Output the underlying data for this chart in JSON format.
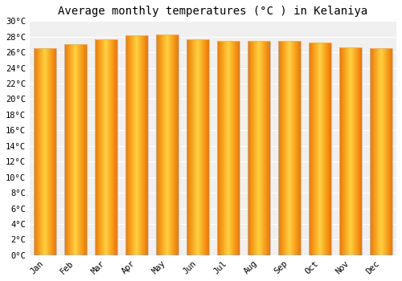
{
  "title": "Average monthly temperatures (°C ) in Kelaniya",
  "months": [
    "Jan",
    "Feb",
    "Mar",
    "Apr",
    "May",
    "Jun",
    "Jul",
    "Aug",
    "Sep",
    "Oct",
    "Nov",
    "Dec"
  ],
  "values": [
    26.5,
    27.0,
    27.7,
    28.2,
    28.3,
    27.7,
    27.5,
    27.5,
    27.5,
    27.2,
    26.6,
    26.5
  ],
  "ylim": [
    0,
    30
  ],
  "ytick_step": 2,
  "background_color": "#ffffff",
  "plot_background": "#f0f0f0",
  "grid_color": "#ffffff",
  "title_fontsize": 10,
  "tick_fontsize": 7.5,
  "bar_color_center": "#FFB300",
  "bar_color_edge": "#F07800",
  "bar_border_color": "#bbbbbb",
  "bar_width": 0.72
}
